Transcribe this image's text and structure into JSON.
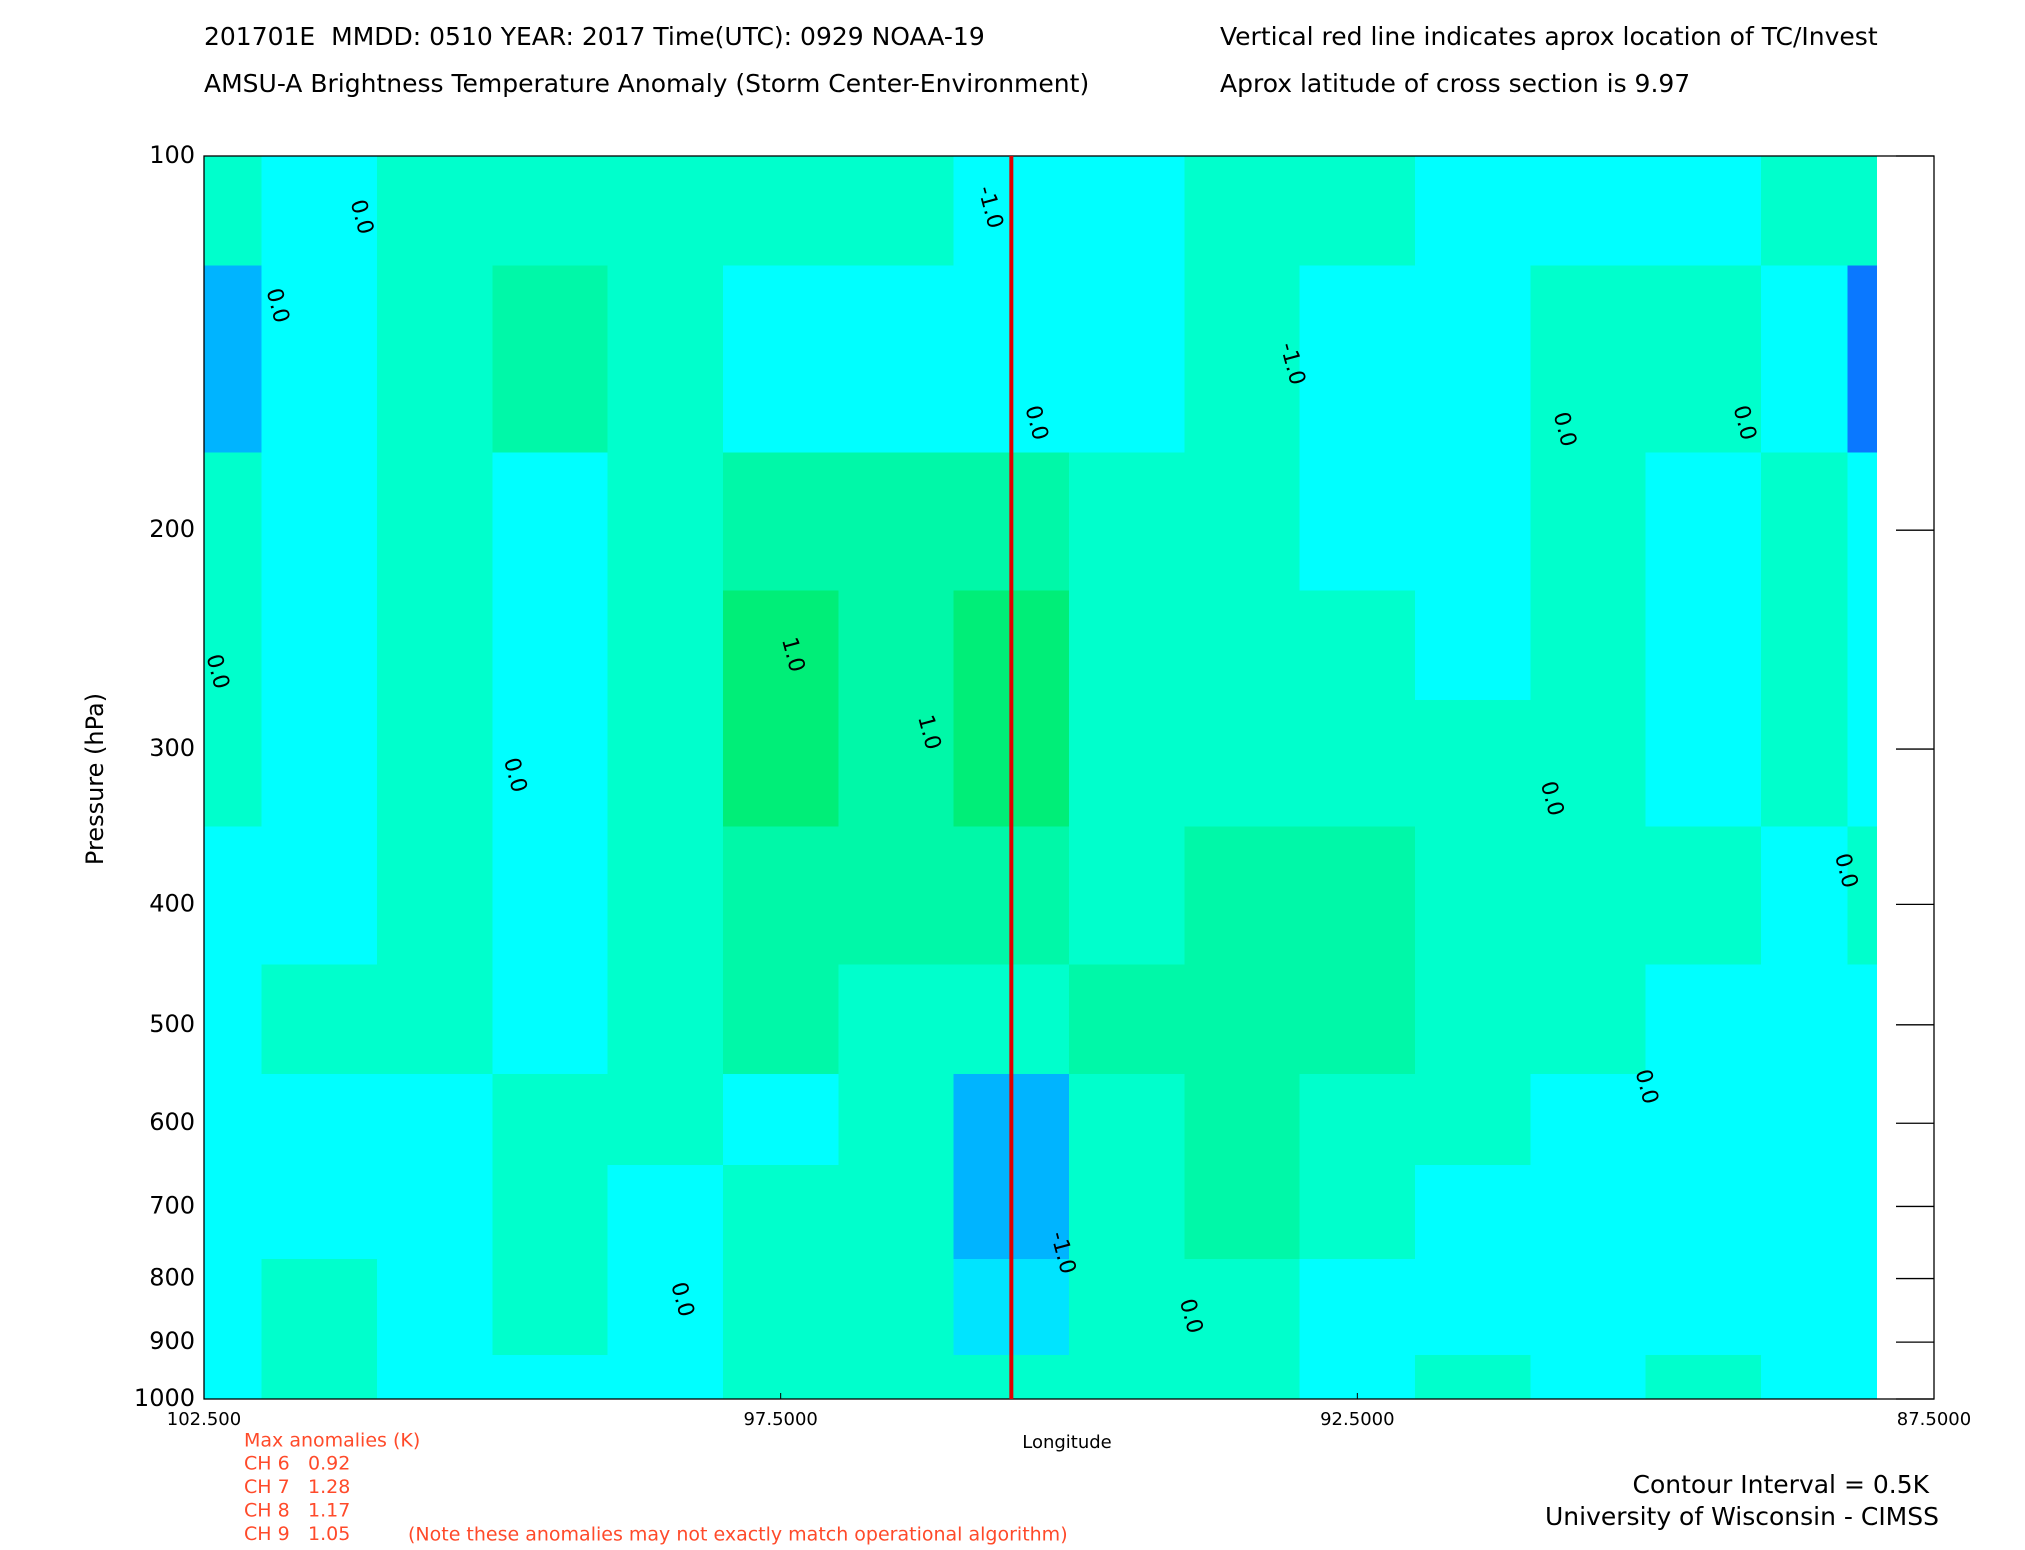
{
  "chart_data": {
    "type": "contour",
    "title_lines": [
      "201701E  MMDD: 0510 YEAR: 2017 Time(UTC): 0929 NOAA-19",
      "AMSU-A Brightness Temperature Anomaly (Storm Center-Environment)"
    ],
    "notes": [
      "Vertical red line indicates aprox location of TC/Invest",
      "Aprox latitude of cross section is 9.97"
    ],
    "xlabel": "Longitude",
    "ylabel": "Pressure (hPa)",
    "xlim": [
      102.5,
      87.5
    ],
    "xticks": [
      {
        "value": 102.5,
        "label": "102.500"
      },
      {
        "value": 97.5,
        "label": "97.5000"
      },
      {
        "value": 92.5,
        "label": "92.5000"
      },
      {
        "value": 87.5,
        "label": "87.5000"
      }
    ],
    "ylim": [
      100,
      1000
    ],
    "log_y": true,
    "yticks": [
      100,
      200,
      300,
      400,
      500,
      600,
      700,
      800,
      900,
      1000
    ],
    "x": [
      102.5,
      101.5,
      100.5,
      99.5,
      98.5,
      97.5,
      96.5,
      95.5,
      94.5,
      93.5,
      92.5,
      91.5,
      90.5,
      89.5,
      88.5,
      88.0
    ],
    "y": [
      100,
      150,
      200,
      250,
      300,
      400,
      500,
      600,
      700,
      850,
      1000
    ],
    "z": [
      [
        0.2,
        -0.1,
        0.1,
        0.1,
        0.1,
        0.1,
        0.2,
        -0.5,
        -0.2,
        0.1,
        0.1,
        -0.2,
        -0.3,
        -0.2,
        0.1,
        0.1
      ],
      [
        -1.2,
        -0.2,
        0.3,
        0.6,
        0.3,
        -0.2,
        -0.3,
        -0.4,
        -0.2,
        0.1,
        -0.3,
        -0.3,
        0.3,
        0.3,
        -0.3,
        -1.6
      ],
      [
        0.1,
        -0.3,
        0.2,
        -0.3,
        0.2,
        0.8,
        0.6,
        0.8,
        0.2,
        0.1,
        -0.2,
        -0.2,
        0.2,
        -0.2,
        0.2,
        -0.3
      ],
      [
        0.1,
        -0.2,
        0.2,
        -0.3,
        0.3,
        1.1,
        0.8,
        1.1,
        0.3,
        0.2,
        0.2,
        -0.2,
        0.1,
        -0.2,
        0.2,
        -0.3
      ],
      [
        0.1,
        -0.2,
        0.2,
        -0.3,
        0.3,
        1.0,
        0.7,
        1.0,
        0.2,
        0.2,
        0.2,
        0.1,
        0.2,
        -0.2,
        0.2,
        -0.2
      ],
      [
        -0.2,
        -0.2,
        0.2,
        -0.3,
        0.3,
        0.7,
        0.6,
        0.6,
        0.3,
        0.5,
        0.6,
        0.3,
        0.1,
        0.1,
        -0.2,
        0.1
      ],
      [
        -0.2,
        0.1,
        0.2,
        -0.3,
        0.2,
        0.6,
        0.3,
        0.1,
        0.7,
        0.8,
        0.7,
        0.4,
        0.1,
        -0.2,
        -0.2,
        -0.2
      ],
      [
        -0.2,
        -0.2,
        -0.2,
        0.2,
        0.2,
        -0.2,
        0.3,
        -1.3,
        0.3,
        0.6,
        0.4,
        0.1,
        -0.2,
        -0.2,
        -0.2,
        -0.2
      ],
      [
        -0.2,
        -0.2,
        -0.2,
        0.2,
        -0.2,
        0.3,
        0.4,
        -1.2,
        0.2,
        0.5,
        0.3,
        -0.2,
        -0.2,
        -0.2,
        -0.2,
        -0.2
      ],
      [
        -0.2,
        0.1,
        -0.2,
        0.2,
        -0.2,
        0.2,
        0.3,
        -0.8,
        0.2,
        0.2,
        -0.2,
        -0.2,
        -0.2,
        -0.2,
        -0.2,
        -0.2
      ],
      [
        -0.2,
        0.2,
        -0.2,
        -0.2,
        -0.2,
        0.2,
        0.3,
        0.1,
        0.3,
        0.2,
        -0.2,
        0.1,
        -0.2,
        0.1,
        -0.2,
        -0.2
      ]
    ],
    "levels": [
      -1.5,
      -1,
      -0.5,
      0,
      0.5,
      1
    ],
    "colors": [
      "#0a78ff",
      "#00b4ff",
      "#00e4ff",
      "#00ffff",
      "#00ffcc",
      "#00f8a8",
      "#00ee78"
    ],
    "tc_longitude": 95.5,
    "tc_color": "#e00000",
    "contour_labels": [
      {
        "text": "0.0",
        "x": 101.14,
        "y": 112
      },
      {
        "text": "0.0",
        "x": 101.87,
        "y": 132
      },
      {
        "text": "-1.0",
        "x": 95.69,
        "y": 110
      },
      {
        "text": "-1.0",
        "x": 93.07,
        "y": 147
      },
      {
        "text": "0.0",
        "x": 95.29,
        "y": 164
      },
      {
        "text": "0.0",
        "x": 90.71,
        "y": 166
      },
      {
        "text": "0.0",
        "x": 89.15,
        "y": 164
      },
      {
        "text": "0.0",
        "x": 102.39,
        "y": 260
      },
      {
        "text": "1.0",
        "x": 97.4,
        "y": 252
      },
      {
        "text": "1.0",
        "x": 96.22,
        "y": 291
      },
      {
        "text": "0.0",
        "x": 99.81,
        "y": 315
      },
      {
        "text": "0.0",
        "x": 90.82,
        "y": 329
      },
      {
        "text": "0.0",
        "x": 88.27,
        "y": 376
      },
      {
        "text": "0.0",
        "x": 90.0,
        "y": 561
      },
      {
        "text": "-1.0",
        "x": 95.06,
        "y": 763
      },
      {
        "text": "0.0",
        "x": 98.36,
        "y": 832
      },
      {
        "text": "0.0",
        "x": 93.95,
        "y": 858
      }
    ],
    "max_anomalies_title": "Max anomalies (K)",
    "max_anomalies": [
      {
        "name": "CH 6",
        "value": "0.92"
      },
      {
        "name": "CH 7",
        "value": "1.28"
      },
      {
        "name": "CH 8",
        "value": "1.17"
      },
      {
        "name": "CH 9",
        "value": "1.05"
      }
    ],
    "anomaly_note": "(Note these anomalies may not exactly match operational algorithm)",
    "contour_interval": "Contour Interval = 0.5K",
    "credit": "University of Wisconsin - CIMSS"
  }
}
